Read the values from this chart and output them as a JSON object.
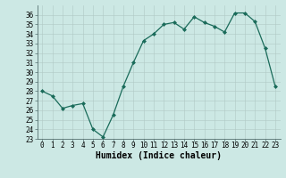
{
  "x": [
    0,
    1,
    2,
    3,
    4,
    5,
    6,
    7,
    8,
    9,
    10,
    11,
    12,
    13,
    14,
    15,
    16,
    17,
    18,
    19,
    20,
    21,
    22,
    23
  ],
  "y": [
    28.0,
    27.5,
    26.2,
    26.5,
    26.7,
    24.0,
    23.2,
    25.5,
    28.5,
    31.0,
    33.3,
    34.0,
    35.0,
    35.2,
    34.5,
    35.8,
    35.2,
    34.8,
    34.2,
    36.2,
    36.2,
    35.3,
    32.5,
    28.5
  ],
  "xlabel": "Humidex (Indice chaleur)",
  "ylabel": "",
  "line_color": "#1a6b5a",
  "marker": "D",
  "marker_size": 2.0,
  "bg_color": "#cce8e4",
  "grid_color": "#b0c8c4",
  "ylim": [
    23,
    37
  ],
  "xlim": [
    -0.5,
    23.5
  ],
  "yticks": [
    23,
    24,
    25,
    26,
    27,
    28,
    29,
    30,
    31,
    32,
    33,
    34,
    35,
    36
  ],
  "xticks": [
    0,
    1,
    2,
    3,
    4,
    5,
    6,
    7,
    8,
    9,
    10,
    11,
    12,
    13,
    14,
    15,
    16,
    17,
    18,
    19,
    20,
    21,
    22,
    23
  ],
  "tick_fontsize": 5.5,
  "xlabel_fontsize": 7.0,
  "linewidth": 0.9
}
